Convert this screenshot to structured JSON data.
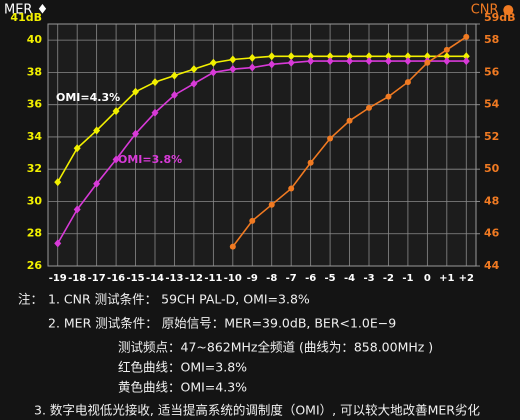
{
  "chart_data": {
    "type": "line",
    "y_title": "MER ♦",
    "y2_title": "CNR ●",
    "categories": [
      "-19",
      "-18",
      "-17",
      "-16",
      "-15",
      "-14",
      "-13",
      "-12",
      "-11",
      "-10",
      "-9",
      "-8",
      "-7",
      "-6",
      "-5",
      "-4",
      "-3",
      "-2",
      "-1",
      "0",
      "+1",
      "+2"
    ],
    "ylim": [
      26,
      41
    ],
    "yticks": [
      26,
      28,
      30,
      32,
      34,
      36,
      38,
      40,
      {
        "value": 41,
        "label": "41dB"
      }
    ],
    "y2lim": [
      44,
      59
    ],
    "y2ticks": [
      44,
      46,
      48,
      50,
      52,
      54,
      56,
      58,
      {
        "value": 59,
        "label": "59dB"
      }
    ],
    "grid": true,
    "series": [
      {
        "name": "OMI=4.3%",
        "color": "#f2f000",
        "marker": "diamond",
        "axis": "y",
        "values": [
          31.2,
          33.3,
          34.4,
          35.6,
          36.8,
          37.4,
          37.8,
          38.2,
          38.6,
          38.8,
          38.9,
          39.0,
          39.0,
          39.0,
          39.0,
          39.0,
          39.0,
          39.0,
          39.0,
          39.0,
          39.0,
          39.0
        ]
      },
      {
        "name": "OMI=3.8%",
        "color": "#d83ad8",
        "marker": "diamond",
        "axis": "y",
        "values": [
          27.4,
          29.5,
          31.1,
          32.6,
          34.2,
          35.5,
          36.6,
          37.3,
          38.0,
          38.2,
          38.3,
          38.5,
          38.6,
          38.7,
          38.7,
          38.7,
          38.7,
          38.7,
          38.7,
          38.7,
          38.7,
          38.7
        ]
      },
      {
        "name": "CNR",
        "color": "#f07a22",
        "marker": "circle",
        "axis": "y2",
        "values": [
          null,
          null,
          null,
          null,
          null,
          null,
          null,
          null,
          null,
          45.2,
          46.8,
          47.8,
          48.8,
          50.4,
          51.9,
          53.0,
          53.8,
          54.5,
          55.4,
          56.6,
          57.4,
          58.2
        ]
      }
    ]
  },
  "notes": {
    "label": "注：",
    "lines": [
      "1. CNR 测试条件：  59CH  PAL-D, OMI=3.8%",
      "2. MER 测试条件：  原始信号：MER=39.0dB, BER<1.0E−9",
      "测试频点：47~862MHz全频道 (曲线为：858.00MHz )",
      "红色曲线：OMI=3.8%",
      "黄色曲线：OMI=4.3%",
      "3. 数字电视低光接收, 适当提高系统的调制度（OMI）, 可以较大地改善MER劣化"
    ]
  }
}
